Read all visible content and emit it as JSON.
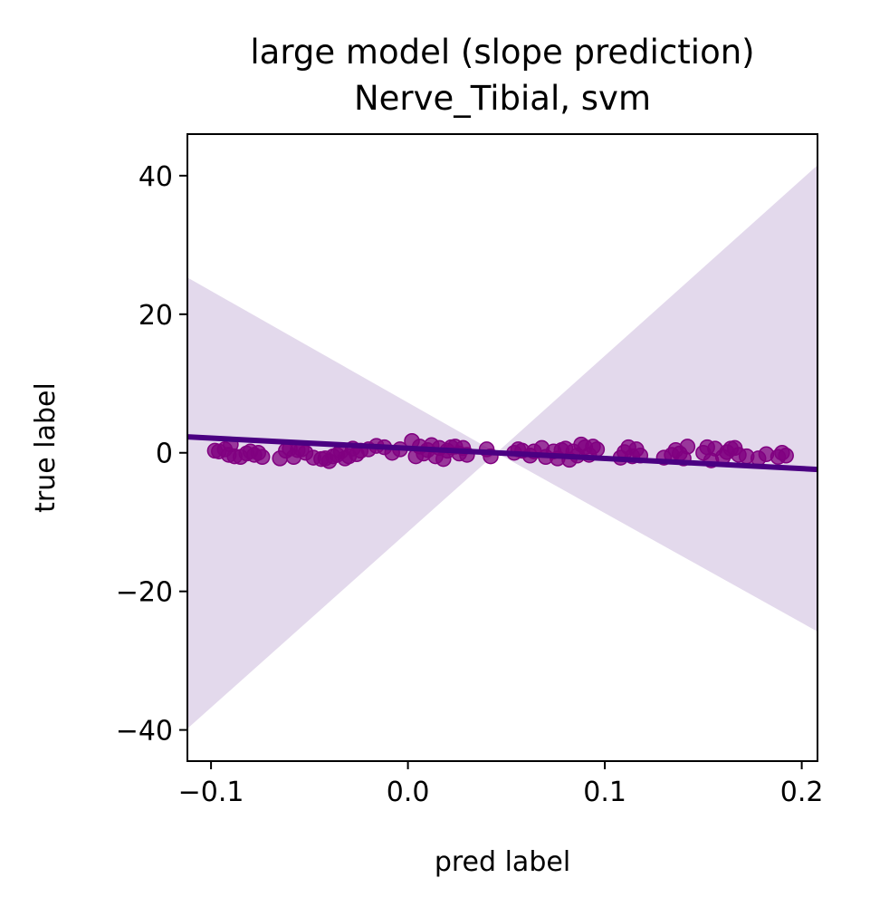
{
  "chart_data": {
    "type": "scatter",
    "title_line1": "large model (slope prediction)",
    "title_line2": "Nerve_Tibial, svm",
    "xlabel": "pred label",
    "ylabel": "true label",
    "xlim": [
      -0.112,
      0.208
    ],
    "ylim": [
      -44.5,
      46
    ],
    "xticks": [
      -0.1,
      0.0,
      0.1,
      0.2
    ],
    "xtick_labels": [
      "−0.1",
      "0.0",
      "0.1",
      "0.2"
    ],
    "yticks": [
      -40,
      -20,
      0,
      20,
      40
    ],
    "ytick_labels": [
      "−40",
      "−20",
      "0",
      "20",
      "40"
    ],
    "grid": false,
    "colors": {
      "points": "#800080",
      "fit_line": "#4b0082",
      "confidence_band": "#e3d9ec"
    },
    "fit_line": {
      "x": [
        -0.112,
        0.208
      ],
      "y": [
        2.3,
        -2.4
      ]
    },
    "confidence_band": {
      "x": [
        -0.112,
        0.045,
        0.208
      ],
      "upper": [
        25.3,
        0.0,
        41.5
      ],
      "lower": [
        -39.8,
        0.0,
        -25.8
      ]
    },
    "points": {
      "x": [
        -0.098,
        -0.096,
        -0.093,
        -0.091,
        -0.09,
        -0.088,
        -0.085,
        -0.082,
        -0.08,
        -0.078,
        -0.076,
        -0.074,
        -0.065,
        -0.062,
        -0.06,
        -0.058,
        -0.056,
        -0.054,
        -0.052,
        -0.048,
        -0.044,
        -0.042,
        -0.04,
        -0.038,
        -0.036,
        -0.034,
        -0.032,
        -0.03,
        -0.028,
        -0.026,
        -0.024,
        -0.02,
        -0.016,
        -0.012,
        -0.008,
        -0.004,
        0.002,
        0.004,
        0.006,
        0.008,
        0.01,
        0.012,
        0.014,
        0.016,
        0.018,
        0.02,
        0.022,
        0.024,
        0.026,
        0.028,
        0.03,
        0.04,
        0.042,
        0.054,
        0.056,
        0.058,
        0.062,
        0.064,
        0.068,
        0.07,
        0.074,
        0.076,
        0.078,
        0.08,
        0.082,
        0.084,
        0.086,
        0.088,
        0.09,
        0.092,
        0.094,
        0.096,
        0.108,
        0.11,
        0.112,
        0.114,
        0.116,
        0.118,
        0.13,
        0.134,
        0.136,
        0.138,
        0.14,
        0.142,
        0.15,
        0.152,
        0.154,
        0.156,
        0.16,
        0.162,
        0.164,
        0.166,
        0.168,
        0.172,
        0.178,
        0.182,
        0.188,
        0.19,
        0.192
      ],
      "y": [
        0.3,
        0.2,
        0.5,
        -0.3,
        1.2,
        -0.5,
        -0.6,
        -0.1,
        0.2,
        -0.3,
        0.0,
        -0.6,
        -0.8,
        0.3,
        0.6,
        -0.6,
        0.4,
        0.5,
        0.0,
        -0.7,
        -0.9,
        -0.8,
        -1.2,
        -0.5,
        -0.3,
        0.2,
        -0.8,
        -0.5,
        0.6,
        -0.2,
        0.3,
        0.5,
        1.0,
        0.8,
        0.0,
        0.5,
        1.7,
        -0.5,
        0.9,
        -0.1,
        0.4,
        1.1,
        -0.5,
        0.7,
        -0.9,
        0.3,
        0.8,
        0.9,
        -0.1,
        0.7,
        -0.3,
        0.5,
        -0.5,
        0.0,
        0.5,
        0.3,
        -0.4,
        0.2,
        0.7,
        -0.6,
        0.2,
        -0.8,
        0.4,
        0.6,
        -1.0,
        0.2,
        -0.4,
        1.2,
        0.8,
        -0.3,
        0.9,
        0.5,
        -0.7,
        0.1,
        0.8,
        -0.5,
        0.5,
        -0.4,
        -0.7,
        -0.3,
        0.4,
        -0.1,
        -0.8,
        0.9,
        0.0,
        0.8,
        -1.1,
        0.6,
        -0.6,
        0.1,
        0.6,
        0.7,
        -0.3,
        -0.5,
        -0.8,
        -0.2,
        -0.6,
        0.0,
        -0.4
      ]
    }
  }
}
